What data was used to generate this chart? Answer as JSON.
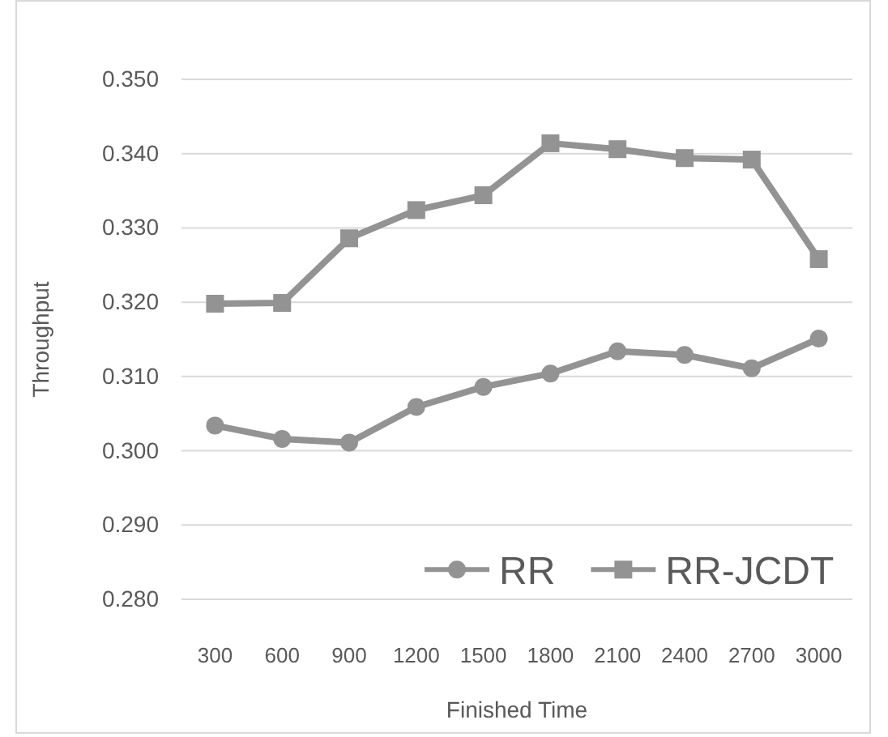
{
  "chart_data": {
    "type": "line",
    "xlabel": "Finished Time",
    "ylabel": "Throughput",
    "categories": [
      "300",
      "600",
      "900",
      "1200",
      "1500",
      "1800",
      "2100",
      "2400",
      "2700",
      "3000"
    ],
    "series": [
      {
        "name": "RR",
        "color": "#939393",
        "marker": "circle",
        "values": [
          0.3034,
          0.3016,
          0.3011,
          0.3059,
          0.3086,
          0.3104,
          0.3134,
          0.3129,
          0.3111,
          0.3151
        ]
      },
      {
        "name": "RR-JCDT",
        "color": "#939393",
        "marker": "square",
        "values": [
          0.3198,
          0.3199,
          0.3286,
          0.3324,
          0.3344,
          0.3414,
          0.3406,
          0.3394,
          0.3392,
          0.3258
        ]
      }
    ],
    "ylim": [
      0.28,
      0.35
    ],
    "yticks": [
      {
        "value": 0.28,
        "label": "0.280"
      },
      {
        "value": 0.29,
        "label": "0.290"
      },
      {
        "value": 0.3,
        "label": "0.300"
      },
      {
        "value": 0.31,
        "label": "0.310"
      },
      {
        "value": 0.32,
        "label": "0.320"
      },
      {
        "value": 0.33,
        "label": "0.330"
      },
      {
        "value": 0.34,
        "label": "0.340"
      },
      {
        "value": 0.35,
        "label": "0.350"
      }
    ],
    "grid": "y",
    "legend": "bottom right",
    "line_style": "solid"
  }
}
